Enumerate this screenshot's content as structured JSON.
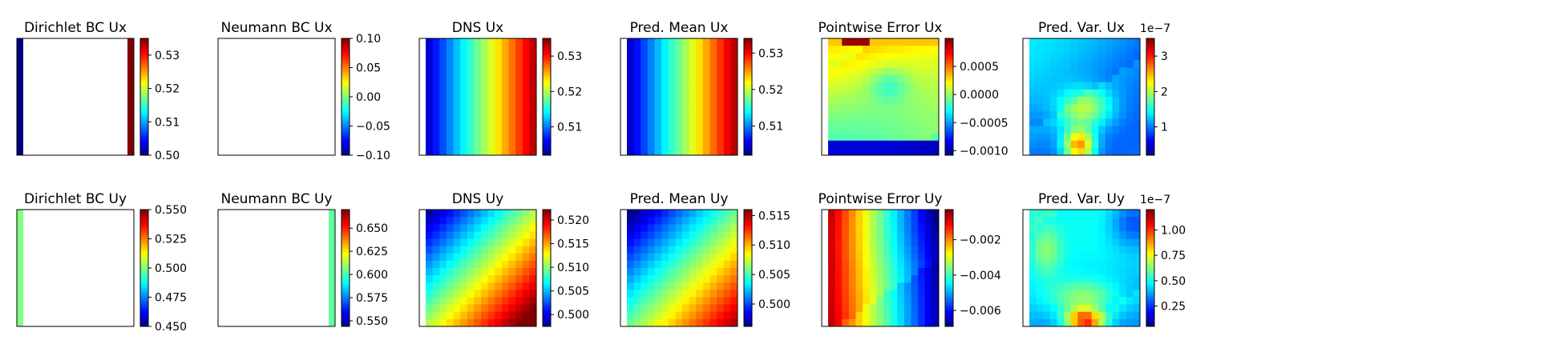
{
  "chart_data": [
    {
      "type": "heatmap",
      "title": "Dirichlet BC Ux",
      "field": "dirichlet_ux",
      "colorbar": {
        "range": [
          0.5,
          0.535
        ],
        "ticks": [
          "0.50",
          "0.51",
          "0.52",
          "0.53"
        ],
        "tick_values": [
          0.5,
          0.51,
          0.52,
          0.53
        ],
        "offset": ""
      }
    },
    {
      "type": "heatmap",
      "title": "Neumann BC Ux",
      "field": "neumann_ux",
      "colorbar": {
        "range": [
          -0.1,
          0.1
        ],
        "ticks": [
          "0.10",
          "0.05",
          "0.00",
          "−0.05",
          "−0.10"
        ],
        "tick_values": [
          0.1,
          0.05,
          0.0,
          -0.05,
          -0.1
        ],
        "offset": ""
      }
    },
    {
      "type": "heatmap",
      "title": "DNS Ux",
      "field": "dns_ux",
      "colorbar": {
        "range": [
          0.502,
          0.535
        ],
        "ticks": [
          "0.53",
          "0.52",
          "0.51"
        ],
        "tick_values": [
          0.53,
          0.52,
          0.51
        ],
        "offset": ""
      }
    },
    {
      "type": "heatmap",
      "title": "Pred. Mean Ux",
      "field": "mean_ux",
      "colorbar": {
        "range": [
          0.502,
          0.534
        ],
        "ticks": [
          "0.53",
          "0.52",
          "0.51"
        ],
        "tick_values": [
          0.53,
          0.52,
          0.51
        ],
        "offset": ""
      }
    },
    {
      "type": "heatmap",
      "title": "Pointwise Error Ux",
      "field": "error_ux",
      "colorbar": {
        "range": [
          -0.00108,
          0.001
        ],
        "ticks": [
          "0.0005",
          "0.0000",
          "−0.0005",
          "−0.0010"
        ],
        "tick_values": [
          0.0005,
          0.0,
          -0.0005,
          -0.001
        ],
        "offset": ""
      }
    },
    {
      "type": "heatmap",
      "title": "Pred. Var. Ux",
      "field": "var_ux",
      "colorbar": {
        "range": [
          0.2,
          3.5
        ],
        "ticks": [
          "3",
          "2",
          "1"
        ],
        "tick_values": [
          3,
          2,
          1
        ],
        "offset": "1e−7"
      }
    },
    {
      "type": "heatmap",
      "title": "Dirichlet BC Uy",
      "field": "dirichlet_uy",
      "colorbar": {
        "range": [
          0.45,
          0.55
        ],
        "ticks": [
          "0.550",
          "0.525",
          "0.500",
          "0.475",
          "0.450"
        ],
        "tick_values": [
          0.55,
          0.525,
          0.5,
          0.475,
          0.45
        ],
        "offset": ""
      }
    },
    {
      "type": "heatmap",
      "title": "Neumann BC Uy",
      "field": "neumann_uy",
      "colorbar": {
        "range": [
          0.544,
          0.67
        ],
        "ticks": [
          "0.650",
          "0.625",
          "0.600",
          "0.575",
          "0.550"
        ],
        "tick_values": [
          0.65,
          0.625,
          0.6,
          0.575,
          0.55
        ],
        "offset": ""
      }
    },
    {
      "type": "heatmap",
      "title": "DNS Uy",
      "field": "dns_uy",
      "colorbar": {
        "range": [
          0.4975,
          0.5222
        ],
        "ticks": [
          "0.520",
          "0.515",
          "0.510",
          "0.505",
          "0.500"
        ],
        "tick_values": [
          0.52,
          0.515,
          0.51,
          0.505,
          0.5
        ],
        "offset": ""
      }
    },
    {
      "type": "heatmap",
      "title": "Pred. Mean Uy",
      "field": "mean_uy",
      "colorbar": {
        "range": [
          0.4962,
          0.516
        ],
        "ticks": [
          "0.515",
          "0.510",
          "0.505",
          "0.500"
        ],
        "tick_values": [
          0.515,
          0.51,
          0.505,
          0.5
        ],
        "offset": ""
      }
    },
    {
      "type": "heatmap",
      "title": "Pointwise Error Uy",
      "field": "error_uy",
      "colorbar": {
        "range": [
          -0.0069,
          -0.0003
        ],
        "ticks": [
          "−0.002",
          "−0.004",
          "−0.006"
        ],
        "tick_values": [
          -0.002,
          -0.004,
          -0.006
        ],
        "offset": ""
      }
    },
    {
      "type": "heatmap",
      "title": "Pred. Var. Uy",
      "field": "var_uy",
      "colorbar": {
        "range": [
          0.05,
          1.2
        ],
        "ticks": [
          "1.00",
          "0.75",
          "0.50",
          "0.25"
        ],
        "tick_values": [
          1.0,
          0.75,
          0.5,
          0.25
        ],
        "offset": "1e−7"
      }
    }
  ]
}
